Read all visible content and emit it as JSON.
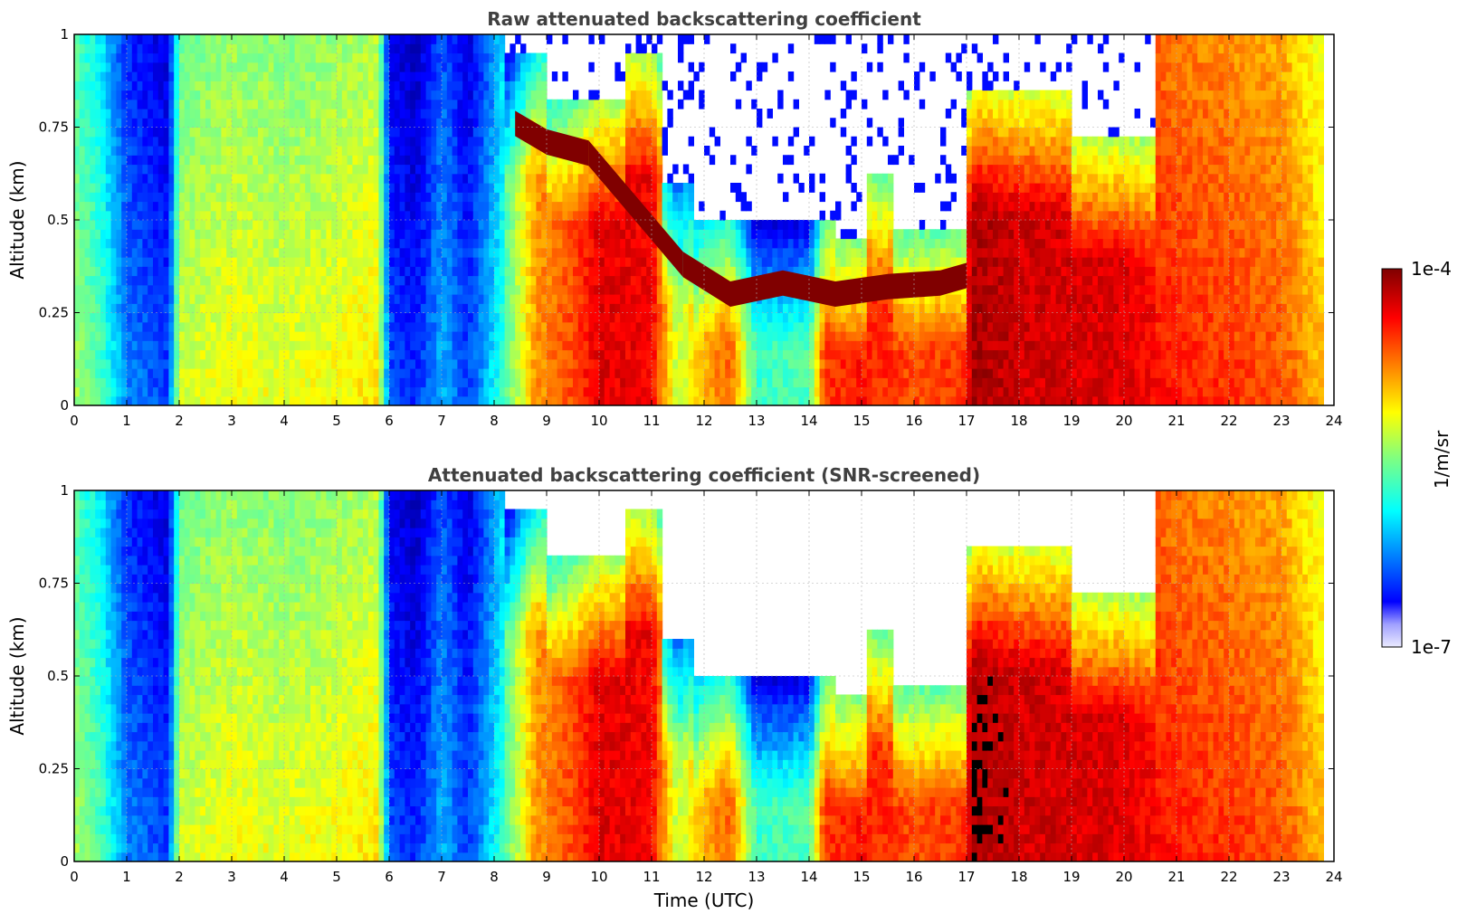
{
  "chart_data": [
    {
      "type": "heatmap",
      "title": "Raw attenuated backscattering coefficient",
      "xlabel": "",
      "ylabel": "Altitude (km)",
      "xlim": [
        0,
        24
      ],
      "ylim": [
        0,
        1
      ],
      "x_ticks": [
        "0",
        "1",
        "2",
        "3",
        "4",
        "5",
        "6",
        "7",
        "8",
        "9",
        "10",
        "11",
        "12",
        "13",
        "14",
        "15",
        "16",
        "17",
        "18",
        "19",
        "20",
        "21",
        "22",
        "23",
        "24"
      ],
      "y_ticks": [
        "0",
        "0.25",
        "0.5",
        "0.75",
        "1"
      ],
      "grid": true,
      "screened": false,
      "cloud_base_km": [
        {
          "t": 8.4,
          "z": 0.76
        },
        {
          "t": 9.0,
          "z": 0.71
        },
        {
          "t": 9.8,
          "z": 0.68
        },
        {
          "t": 11.6,
          "z": 0.38
        },
        {
          "t": 12.5,
          "z": 0.3
        },
        {
          "t": 13.5,
          "z": 0.33
        },
        {
          "t": 14.5,
          "z": 0.3
        },
        {
          "t": 15.5,
          "z": 0.32
        },
        {
          "t": 16.5,
          "z": 0.33
        },
        {
          "t": 17.0,
          "z": 0.35
        }
      ]
    },
    {
      "type": "heatmap",
      "title": "Attenuated backscattering coefficient (SNR-screened)",
      "xlabel": "Time (UTC)",
      "ylabel": "Altitude (km)",
      "xlim": [
        0,
        24
      ],
      "ylim": [
        0,
        1
      ],
      "x_ticks": [
        "0",
        "1",
        "2",
        "3",
        "4",
        "5",
        "6",
        "7",
        "8",
        "9",
        "10",
        "11",
        "12",
        "13",
        "14",
        "15",
        "16",
        "17",
        "18",
        "19",
        "20",
        "21",
        "22",
        "23",
        "24"
      ],
      "y_ticks": [
        "0",
        "0.25",
        "0.5",
        "0.75",
        "1"
      ],
      "grid": true,
      "screened": true
    }
  ],
  "colorbar": {
    "label": "1/m/sr",
    "max_label": "1e-4",
    "min_label": "1e-7",
    "scale": "log",
    "vmin": 1e-07,
    "vmax": 0.0001,
    "colormap": [
      "#ebebff",
      "#0000ff",
      "#00c8ff",
      "#7aff7a",
      "#ffff00",
      "#ff8c00",
      "#ff1e00",
      "#7f0000"
    ]
  },
  "colors": {
    "saturated_screened": "#000000",
    "no_data": "#ffffff",
    "title": "#404040"
  }
}
